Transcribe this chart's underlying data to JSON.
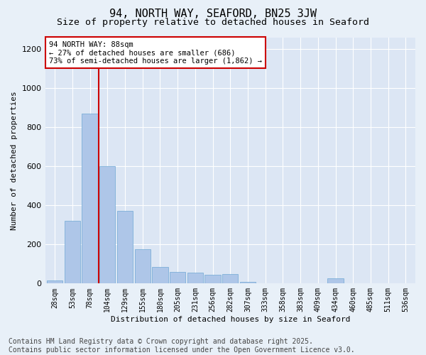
{
  "title": "94, NORTH WAY, SEAFORD, BN25 3JW",
  "subtitle": "Size of property relative to detached houses in Seaford",
  "xlabel": "Distribution of detached houses by size in Seaford",
  "ylabel": "Number of detached properties",
  "categories": [
    "28sqm",
    "53sqm",
    "78sqm",
    "104sqm",
    "129sqm",
    "155sqm",
    "180sqm",
    "205sqm",
    "231sqm",
    "256sqm",
    "282sqm",
    "307sqm",
    "333sqm",
    "358sqm",
    "383sqm",
    "409sqm",
    "434sqm",
    "460sqm",
    "485sqm",
    "511sqm",
    "536sqm"
  ],
  "values": [
    15,
    320,
    870,
    600,
    370,
    175,
    85,
    60,
    55,
    45,
    50,
    10,
    0,
    0,
    0,
    0,
    25,
    0,
    0,
    0,
    0
  ],
  "bar_color": "#aec6e8",
  "bar_edge_color": "#6fa8d4",
  "vline_x": 2.5,
  "annotation_text": "94 NORTH WAY: 88sqm\n← 27% of detached houses are smaller (686)\n73% of semi-detached houses are larger (1,862) →",
  "annotation_box_facecolor": "#ffffff",
  "annotation_box_edgecolor": "#cc0000",
  "vline_color": "#cc0000",
  "ylim": [
    0,
    1260
  ],
  "yticks": [
    0,
    200,
    400,
    600,
    800,
    1000,
    1200
  ],
  "bg_color": "#e8f0f8",
  "plot_bg_color": "#dce6f4",
  "footer_line1": "Contains HM Land Registry data © Crown copyright and database right 2025.",
  "footer_line2": "Contains public sector information licensed under the Open Government Licence v3.0.",
  "title_fontsize": 11,
  "subtitle_fontsize": 9.5,
  "axis_fontsize": 8,
  "tick_fontsize": 7,
  "footer_fontsize": 7
}
